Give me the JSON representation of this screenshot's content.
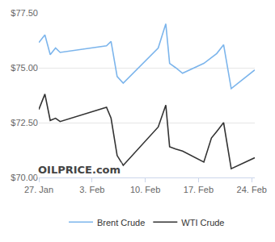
{
  "chart_data": {
    "type": "line",
    "x": [
      0,
      0.8,
      1.5,
      2.2,
      2.8,
      8.9,
      9.5,
      10.3,
      11.1,
      15.7,
      16.7,
      17.2,
      18.0,
      18.9,
      21.7,
      22.7,
      23.4,
      24.3,
      25.3,
      28.4
    ],
    "series": [
      {
        "name": "Brent Crude",
        "color": "#7cb5ec",
        "values": [
          76.15,
          76.5,
          75.6,
          75.9,
          75.7,
          76.0,
          76.2,
          74.6,
          74.3,
          75.9,
          77.0,
          75.2,
          75.0,
          74.75,
          75.2,
          75.45,
          75.65,
          76.05,
          74.05,
          74.9
        ]
      },
      {
        "name": "WTI Crude",
        "color": "#333333",
        "values": [
          73.1,
          73.8,
          72.6,
          72.7,
          72.55,
          73.2,
          72.7,
          71.0,
          70.55,
          72.3,
          73.3,
          71.4,
          71.3,
          71.2,
          70.7,
          71.8,
          72.1,
          72.5,
          70.4,
          70.9
        ]
      }
    ],
    "xlim": [
      0,
      28.4
    ],
    "xticks": [
      {
        "value": 0,
        "label": "27. Jan"
      },
      {
        "value": 7,
        "label": "3. Feb"
      },
      {
        "value": 14,
        "label": "10. Feb"
      },
      {
        "value": 21,
        "label": "17. Feb"
      },
      {
        "value": 28,
        "label": "24. Feb"
      }
    ],
    "ylim": [
      70,
      77.5
    ],
    "yticks": [
      {
        "value": 70,
        "label": "$70.00"
      },
      {
        "value": 72.5,
        "label": "$72.50"
      },
      {
        "value": 75,
        "label": "$75.00"
      },
      {
        "value": 77.5,
        "label": "$77.50"
      }
    ],
    "grid": true,
    "legend": "bottom",
    "annotations": [
      {
        "text": "OILPRICE.com"
      }
    ]
  }
}
